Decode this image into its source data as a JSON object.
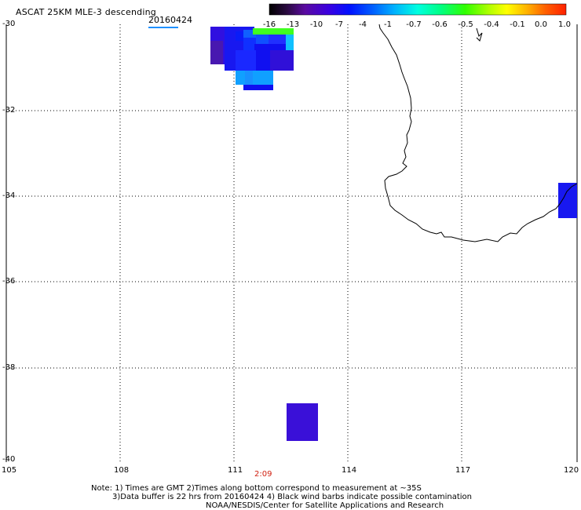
{
  "header": {
    "title": "ASCAT 25KM MLE-3 descending",
    "date": "20160424"
  },
  "colorbar": {
    "labels": [
      "-16",
      "-13",
      "-10",
      "-7",
      "-4",
      "-1",
      "-0.7",
      "-0.6",
      "-0.5",
      "-0.4",
      "-0.1",
      "0.0",
      "1.0"
    ],
    "colors": [
      "#000000",
      "#3a0a5a",
      "#5a0aa0",
      "#2a00e0",
      "#0030ff",
      "#0090ff",
      "#00e0ff",
      "#00ff80",
      "#40ff00",
      "#c0ff00",
      "#ffe000",
      "#ff8000",
      "#ff2000"
    ]
  },
  "axes": {
    "lat_labels": [
      "-30",
      "-32",
      "-34",
      "-36",
      "-38",
      "-40"
    ],
    "lon_labels": [
      "105",
      "108",
      "111",
      "114",
      "117",
      "120"
    ],
    "lat_range": [
      -40,
      -30
    ],
    "lon_range": [
      105,
      120
    ]
  },
  "pass_time": "2:09",
  "notes": {
    "line1": "Note: 1) Times are GMT 2)Times along bottom correspond to measurement at ~35S",
    "line2": "3)Data buffer is 22 hrs from 20160424 4) Black wind barbs indicate possible contamination",
    "line3": "NOAA/NESDIS/Center for Satellite Applications and Research"
  },
  "colors": {
    "coastline": "#000000",
    "grid": "#000000",
    "data_blue": "#1010f0",
    "data_violet": "#3a10d0",
    "data_purple": "#4818b0",
    "data_cyan": "#10a0ff",
    "data_green": "#20ff40"
  }
}
